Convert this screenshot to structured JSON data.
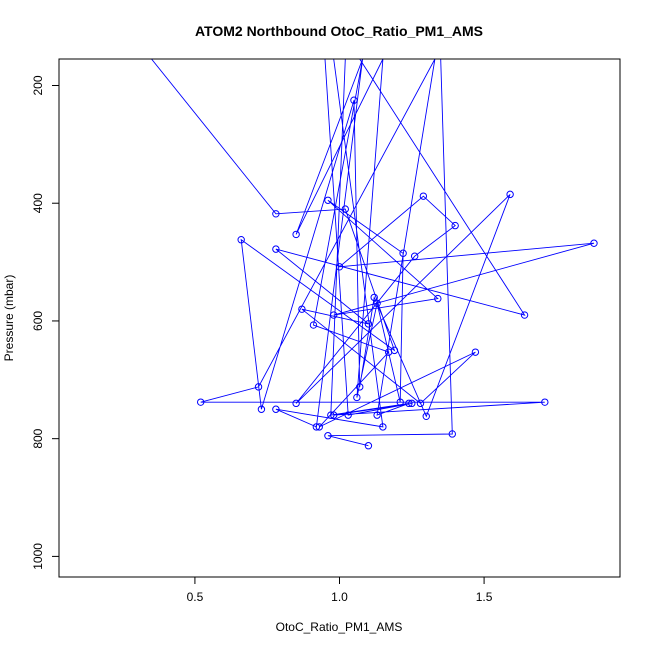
{
  "chart_data": {
    "type": "line",
    "title": "ATOM2 Northbound OtoC_Ratio_PM1_AMS",
    "xlabel": "OtoC_Ratio_PM1_AMS",
    "ylabel": "Pressure (mbar)",
    "xlim": [
      0.03,
      1.97
    ],
    "ylim": [
      1035,
      155
    ],
    "y_reversed": true,
    "x_ticks": [
      "0.5",
      "1.0",
      "1.5"
    ],
    "y_ticks": [
      "200",
      "400",
      "600",
      "800",
      "1000"
    ],
    "x_tick_values": [
      0.5,
      1.0,
      1.5
    ],
    "y_tick_values": [
      200,
      400,
      600,
      800,
      1000
    ],
    "grid": false,
    "legend": "none",
    "series_color": "#0000ff",
    "series": [
      {
        "x": [
          0.35,
          0.78,
          1.02,
          1.19,
          0.66,
          0.73,
          1.05,
          1.07,
          1.12,
          1.3,
          1.59,
          0.85,
          1.26,
          1.4,
          1.29,
          1.0,
          1.88,
          0.98,
          1.34,
          0.96,
          1.22,
          1.21,
          1.13,
          1.06,
          1.15,
          0.85,
          1.08,
          0.91,
          1.17,
          0.93,
          1.47,
          1.28,
          0.87,
          1.1,
          0.78,
          1.64,
          1.07,
          1.02,
          0.97,
          1.24,
          1.13,
          1.33,
          0.72,
          0.52,
          1.71,
          0.98,
          1.25,
          1.03,
          0.95,
          1.5,
          0.98,
          1.15,
          0.78,
          0.92,
          1.08,
          1.35,
          1.39,
          0.96,
          1.1
        ],
        "y": [
          155,
          418,
          410,
          650,
          462,
          750,
          225,
          712,
          560,
          762,
          385,
          740,
          490,
          438,
          388,
          508,
          468,
          590,
          562,
          395,
          485,
          738,
          570,
          730,
          155,
          453,
          155,
          607,
          653,
          780,
          653,
          740,
          580,
          605,
          478,
          590,
          155,
          155,
          760,
          740,
          760,
          155,
          712,
          738,
          738,
          760,
          740,
          760,
          155,
          155,
          155,
          780,
          750,
          780,
          155,
          155,
          792,
          795,
          812
        ]
      }
    ]
  }
}
